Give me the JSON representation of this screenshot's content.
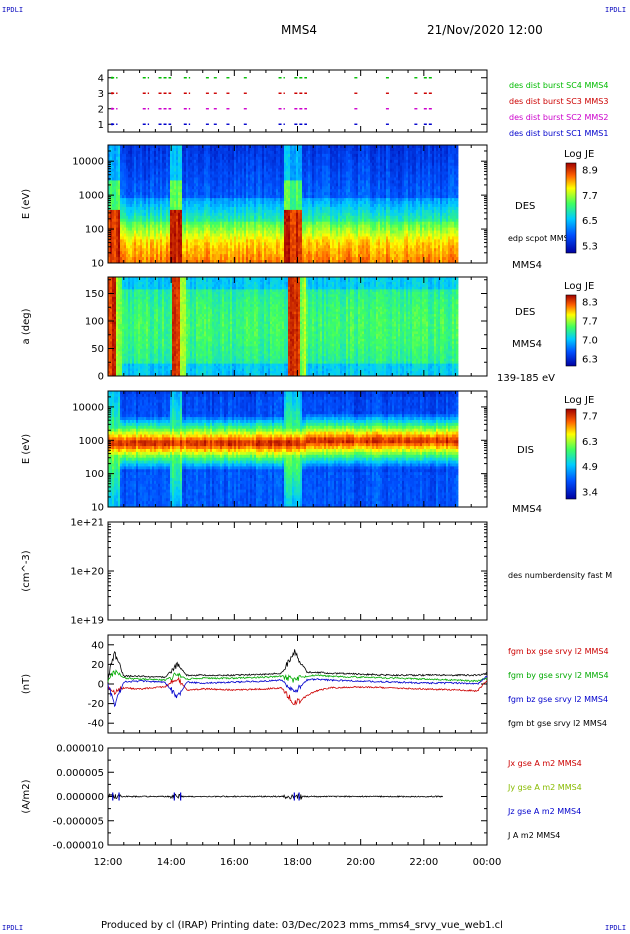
{
  "header": {
    "corner_tl": "IPDLI",
    "corner_tr": "IPDLI",
    "corner_bl": "IPDLI",
    "corner_br": "IPDLI",
    "spacecraft": "MMS4",
    "datetime": "21/Nov/2020 12:00"
  },
  "footer": {
    "text": "Produced by cl (IRAP)   Printing date: 03/Dec/2023   mms_mms4_srvy_vue_web1.cl"
  },
  "chart_data": [
    {
      "type": "scatter",
      "name": "burst-availability",
      "ylim": [
        0.5,
        4.5
      ],
      "yticks": [
        "1",
        "2",
        "3",
        "4"
      ],
      "legend": [
        {
          "label": "des dist burst SC1 MMS1",
          "color": "#0000cc",
          "level": 1
        },
        {
          "label": "des dist burst SC2 MMS2",
          "color": "#cc00cc",
          "level": 2
        },
        {
          "label": "des dist burst SC3 MMS3",
          "color": "#cc0000",
          "level": 3
        },
        {
          "label": "des dist burst SC4 MMS4",
          "color": "#00bb00",
          "level": 4
        }
      ],
      "burst_hours": [
        [
          12.1,
          12.3
        ],
        [
          13.1,
          13.3
        ],
        [
          13.6,
          14.0
        ],
        [
          14.4,
          14.6
        ],
        [
          15.1,
          15.2
        ],
        [
          15.35,
          15.45
        ],
        [
          15.75,
          15.85
        ],
        [
          16.3,
          16.4
        ],
        [
          17.4,
          17.6
        ],
        [
          17.9,
          18.3
        ],
        [
          19.8,
          19.95
        ],
        [
          20.8,
          20.95
        ],
        [
          21.7,
          21.8
        ],
        [
          22.0,
          22.3
        ]
      ]
    },
    {
      "type": "heatmap",
      "name": "des-energy-spectrogram",
      "ylabel": "E (eV)",
      "yscale": "log",
      "ylim": [
        10,
        30000
      ],
      "yticks": [
        "10",
        "100",
        "1000",
        "10000"
      ],
      "right_labels": [
        "DES",
        "edp scpot MMS4",
        "MMS4"
      ],
      "colorbar": {
        "title": "Log JE",
        "ticks": [
          "8.9",
          "7.7",
          "6.5",
          "5.3"
        ]
      }
    },
    {
      "type": "heatmap",
      "name": "des-pitch-angle",
      "ylabel": "a (deg)",
      "ylim": [
        0,
        180
      ],
      "yticks": [
        "0",
        "50",
        "100",
        "150"
      ],
      "right_labels": [
        "DES",
        "MMS4",
        "139-185 eV"
      ],
      "colorbar": {
        "title": "Log JE",
        "ticks": [
          "8.3",
          "7.7",
          "7.0",
          "6.3"
        ]
      }
    },
    {
      "type": "heatmap",
      "name": "dis-energy-spectrogram",
      "ylabel": "E (eV)",
      "yscale": "log",
      "ylim": [
        10,
        30000
      ],
      "yticks": [
        "10",
        "100",
        "1000",
        "10000"
      ],
      "right_labels": [
        "DIS",
        "MMS4"
      ],
      "colorbar": {
        "title": "Log JE",
        "ticks": [
          "7.7",
          "6.3",
          "4.9",
          "3.4"
        ]
      }
    },
    {
      "type": "line",
      "name": "des-number-density",
      "ylabel": "(cm^-3)",
      "yscale": "log",
      "ylim": [
        1e+19,
        1e+21
      ],
      "yticks": [
        "1e+19",
        "1e+20",
        "1e+21"
      ],
      "series": [
        {
          "name": "des numberdensity fast M",
          "values": []
        }
      ]
    },
    {
      "type": "line",
      "name": "fgm-magnetic-field",
      "ylabel": "(nT)",
      "ylim": [
        -50,
        50
      ],
      "yticks": [
        "-40",
        "-20",
        "0",
        "20",
        "40"
      ],
      "series": [
        {
          "name": "fgm bx gse srvy l2 MMS4",
          "color": "#cc0000",
          "x": [
            12.0,
            12.2,
            12.5,
            13.0,
            13.8,
            14.2,
            14.5,
            15.0,
            16.0,
            17.0,
            17.5,
            17.9,
            18.3,
            18.6,
            19.0,
            20.0,
            21.0,
            22.0,
            23.0,
            23.7,
            24.0
          ],
          "values": [
            -2,
            -8,
            -4,
            -5,
            -3,
            6,
            -6,
            -5,
            -6,
            -5,
            -4,
            -20,
            -12,
            -7,
            -4,
            -3,
            -4,
            -5,
            -6,
            -7,
            4
          ]
        },
        {
          "name": "fgm by gse srvy l2 MMS4",
          "color": "#00aa00",
          "x": [
            12.0,
            12.2,
            12.5,
            13.0,
            13.8,
            14.2,
            14.5,
            15.0,
            16.0,
            17.0,
            17.5,
            17.9,
            18.3,
            18.6,
            19.0,
            20.0,
            21.0,
            22.0,
            23.0,
            23.7,
            24.0
          ],
          "values": [
            3,
            12,
            6,
            5,
            4,
            10,
            5,
            6,
            6,
            7,
            8,
            4,
            8,
            9,
            8,
            7,
            6,
            5,
            4,
            3,
            6
          ]
        },
        {
          "name": "fgm bz gse srvy l2 MMS4",
          "color": "#0000cc",
          "x": [
            12.0,
            12.2,
            12.5,
            13.0,
            13.8,
            14.2,
            14.5,
            15.0,
            16.0,
            17.0,
            17.5,
            17.9,
            18.3,
            18.6,
            19.0,
            20.0,
            21.0,
            22.0,
            23.0,
            23.7,
            24.0
          ],
          "values": [
            1,
            -22,
            2,
            3,
            2,
            -14,
            2,
            1,
            2,
            3,
            4,
            -8,
            4,
            5,
            4,
            3,
            2,
            1,
            1,
            0,
            8
          ]
        },
        {
          "name": "fgm bt gse srvy l2 MMS4",
          "color": "#000000",
          "x": [
            12.0,
            12.2,
            12.5,
            13.0,
            13.8,
            14.2,
            14.5,
            15.0,
            16.0,
            17.0,
            17.5,
            17.9,
            18.3,
            18.6,
            19.0,
            20.0,
            21.0,
            22.0,
            23.0,
            23.7,
            24.0
          ],
          "values": [
            6,
            32,
            8,
            8,
            7,
            20,
            9,
            9,
            9,
            10,
            11,
            33,
            12,
            12,
            11,
            10,
            9,
            9,
            9,
            9,
            11
          ]
        }
      ]
    },
    {
      "type": "line",
      "name": "current-density",
      "ylabel": "(A/m2)",
      "ylim": [
        -0.0001,
        0.0001
      ],
      "yticks": [
        "-0.000010",
        "-0.000005",
        "0.000000",
        "0.000005",
        "0.000010"
      ],
      "series": [
        {
          "name": "Jx gse A m2 MMS4",
          "color": "#cc0000"
        },
        {
          "name": "Jy gse A m2 MMS4",
          "color": "#88bb00"
        },
        {
          "name": "Jz gse A m2 MMS4",
          "color": "#0000cc"
        },
        {
          "name": "J A m2 MMS4",
          "color": "#000000"
        }
      ]
    }
  ],
  "xaxis": {
    "range": [
      12,
      24
    ],
    "ticks": [
      "12:00",
      "14:00",
      "16:00",
      "18:00",
      "20:00",
      "22:00",
      "00:00"
    ]
  }
}
